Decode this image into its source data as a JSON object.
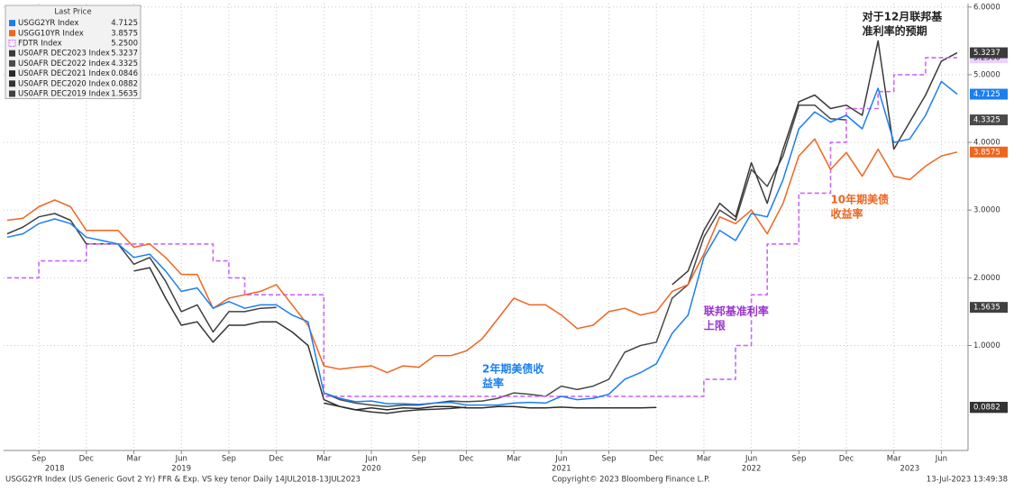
{
  "chart_data": {
    "type": "line",
    "legend_title": "Last Price",
    "footer_left": "USGG2YR Index (US Generic Govt 2 Yr) FFR & Exp. VS key tenor  Daily 14JUL2018-13JUL2023",
    "footer_center": "Copyright© 2023 Bloomberg Finance L.P.",
    "footer_right": "13-Jul-2023 13:49:38",
    "grid": true,
    "legend": "upper left",
    "xlim": [
      "2018-07",
      "2023-07"
    ],
    "ylim": [
      -0.55,
      6.05
    ],
    "yticks": [
      {
        "value": 1,
        "label": "1.0000"
      },
      {
        "value": 2,
        "label": "2.0000"
      },
      {
        "value": 3,
        "label": "3.0000"
      },
      {
        "value": 4,
        "label": "4.0000"
      },
      {
        "value": 5,
        "label": "5.0000"
      },
      {
        "value": 6,
        "label": "6.0000"
      }
    ],
    "xticks": [
      {
        "value": "2018-09",
        "label": "Sep"
      },
      {
        "value": "2018-12",
        "label": "Dec"
      },
      {
        "value": "2019-03",
        "label": "Mar"
      },
      {
        "value": "2019-06",
        "label": "Jun"
      },
      {
        "value": "2019-09",
        "label": "Sep"
      },
      {
        "value": "2019-12",
        "label": "Dec"
      },
      {
        "value": "2020-03",
        "label": "Mar"
      },
      {
        "value": "2020-06",
        "label": "Jun"
      },
      {
        "value": "2020-09",
        "label": "Sep"
      },
      {
        "value": "2020-12",
        "label": "Dec"
      },
      {
        "value": "2021-03",
        "label": "Mar"
      },
      {
        "value": "2021-06",
        "label": "Jun"
      },
      {
        "value": "2021-09",
        "label": "Sep"
      },
      {
        "value": "2021-12",
        "label": "Dec"
      },
      {
        "value": "2022-03",
        "label": "Mar"
      },
      {
        "value": "2022-06",
        "label": "Jun"
      },
      {
        "value": "2022-09",
        "label": "Sep"
      },
      {
        "value": "2022-12",
        "label": "Dec"
      },
      {
        "value": "2023-03",
        "label": "Mar"
      },
      {
        "value": "2023-06",
        "label": "Jun"
      }
    ],
    "year_labels": [
      {
        "value": "2018-10",
        "label": "2018"
      },
      {
        "value": "2019-06",
        "label": "2019"
      },
      {
        "value": "2020-06",
        "label": "2020"
      },
      {
        "value": "2021-06",
        "label": "2021"
      },
      {
        "value": "2022-06",
        "label": "2022"
      },
      {
        "value": "2023-04",
        "label": "2023"
      }
    ],
    "x": [
      "2018-07",
      "2018-08",
      "2018-09",
      "2018-10",
      "2018-11",
      "2018-12",
      "2019-01",
      "2019-02",
      "2019-03",
      "2019-04",
      "2019-05",
      "2019-06",
      "2019-07",
      "2019-08",
      "2019-09",
      "2019-10",
      "2019-11",
      "2019-12",
      "2020-01",
      "2020-02",
      "2020-03",
      "2020-04",
      "2020-05",
      "2020-06",
      "2020-07",
      "2020-08",
      "2020-09",
      "2020-10",
      "2020-11",
      "2020-12",
      "2021-01",
      "2021-02",
      "2021-03",
      "2021-04",
      "2021-05",
      "2021-06",
      "2021-07",
      "2021-08",
      "2021-09",
      "2021-10",
      "2021-11",
      "2021-12",
      "2022-01",
      "2022-02",
      "2022-03",
      "2022-04",
      "2022-05",
      "2022-06",
      "2022-07",
      "2022-08",
      "2022-09",
      "2022-10",
      "2022-11",
      "2022-12",
      "2023-01",
      "2023-02",
      "2023-03",
      "2023-04",
      "2023-05",
      "2023-06",
      "2023-07"
    ],
    "series": [
      {
        "name": "USGG2YR Index",
        "color": "#1a7ff0",
        "tag_text": "#ffffff",
        "last_label": "4.7125",
        "values": [
          2.6,
          2.65,
          2.8,
          2.87,
          2.8,
          2.6,
          2.55,
          2.5,
          2.3,
          2.35,
          2.1,
          1.8,
          1.85,
          1.55,
          1.65,
          1.55,
          1.6,
          1.6,
          1.45,
          1.35,
          0.3,
          0.22,
          0.17,
          0.18,
          0.14,
          0.14,
          0.13,
          0.15,
          0.16,
          0.12,
          0.12,
          0.12,
          0.15,
          0.16,
          0.15,
          0.25,
          0.2,
          0.22,
          0.28,
          0.5,
          0.6,
          0.73,
          1.18,
          1.45,
          2.3,
          2.7,
          2.55,
          2.95,
          2.9,
          3.45,
          4.2,
          4.45,
          4.3,
          4.4,
          4.2,
          4.8,
          4.0,
          4.05,
          4.4,
          4.9,
          4.7125
        ]
      },
      {
        "name": "USGG10YR Index",
        "color": "#f0641e",
        "tag_text": "#ffffff",
        "last_label": "3.8575",
        "values": [
          2.85,
          2.88,
          3.05,
          3.15,
          3.05,
          2.7,
          2.7,
          2.7,
          2.45,
          2.5,
          2.3,
          2.05,
          2.05,
          1.55,
          1.7,
          1.75,
          1.8,
          1.9,
          1.6,
          1.3,
          0.7,
          0.65,
          0.68,
          0.7,
          0.6,
          0.7,
          0.68,
          0.85,
          0.85,
          0.92,
          1.1,
          1.4,
          1.7,
          1.6,
          1.6,
          1.45,
          1.25,
          1.3,
          1.5,
          1.55,
          1.45,
          1.5,
          1.8,
          1.9,
          2.35,
          2.9,
          2.8,
          3.0,
          2.65,
          3.1,
          3.8,
          4.05,
          3.6,
          3.85,
          3.5,
          3.9,
          3.5,
          3.45,
          3.65,
          3.8,
          3.8575
        ]
      },
      {
        "name": "FDTR Index",
        "color": "#cc66ff",
        "tag_text": "#222222",
        "last_label": "5.2500",
        "step": true,
        "dashed": true,
        "values": [
          2.0,
          2.0,
          2.25,
          2.25,
          2.25,
          2.5,
          2.5,
          2.5,
          2.5,
          2.5,
          2.5,
          2.5,
          2.5,
          2.25,
          2.0,
          1.75,
          1.75,
          1.75,
          1.75,
          1.75,
          0.25,
          0.25,
          0.25,
          0.25,
          0.25,
          0.25,
          0.25,
          0.25,
          0.25,
          0.25,
          0.25,
          0.25,
          0.25,
          0.25,
          0.25,
          0.25,
          0.25,
          0.25,
          0.25,
          0.25,
          0.25,
          0.25,
          0.25,
          0.25,
          0.5,
          0.5,
          1.0,
          1.75,
          2.5,
          2.5,
          3.25,
          3.25,
          4.0,
          4.5,
          4.5,
          4.75,
          5.0,
          5.0,
          5.25,
          5.25,
          5.25
        ]
      },
      {
        "name": "US0AFR DEC2023 Index",
        "color": "#3a3a3a",
        "tag_text": "#ffffff",
        "last_label": "5.3237",
        "values": [
          null,
          null,
          null,
          null,
          null,
          null,
          null,
          null,
          null,
          null,
          null,
          null,
          null,
          null,
          null,
          null,
          null,
          null,
          null,
          null,
          null,
          null,
          null,
          null,
          null,
          null,
          null,
          null,
          null,
          null,
          null,
          null,
          null,
          null,
          null,
          null,
          null,
          null,
          null,
          null,
          null,
          null,
          1.9,
          2.1,
          2.7,
          3.1,
          2.9,
          3.7,
          3.1,
          3.9,
          4.6,
          4.7,
          4.5,
          4.55,
          4.4,
          5.5,
          3.9,
          4.3,
          4.7,
          5.2,
          5.3237
        ]
      },
      {
        "name": "US0AFR DEC2022 Index",
        "color": "#4a4a4a",
        "tag_text": "#ffffff",
        "last_label": "4.3325",
        "values": [
          null,
          null,
          null,
          null,
          null,
          null,
          null,
          null,
          null,
          null,
          null,
          null,
          null,
          null,
          null,
          null,
          null,
          null,
          null,
          null,
          0.3,
          0.2,
          0.15,
          0.12,
          0.1,
          0.12,
          0.12,
          0.15,
          0.18,
          0.17,
          0.18,
          0.22,
          0.3,
          0.28,
          0.25,
          0.4,
          0.35,
          0.4,
          0.5,
          0.9,
          1.0,
          1.05,
          1.7,
          1.9,
          2.6,
          3.0,
          2.85,
          3.6,
          3.35,
          3.8,
          4.55,
          4.55,
          4.35,
          4.3325,
          null,
          null,
          null,
          null,
          null,
          null,
          null
        ]
      },
      {
        "name": "US0AFR DEC2021 Index",
        "color": "#2a2a2a",
        "tag_text": "#ffffff",
        "last_label": "0.0846",
        "values": [
          null,
          null,
          null,
          null,
          null,
          null,
          null,
          null,
          null,
          null,
          null,
          null,
          null,
          null,
          null,
          null,
          null,
          null,
          null,
          null,
          0.15,
          0.1,
          0.05,
          0.08,
          0.05,
          0.08,
          0.07,
          0.1,
          0.1,
          0.08,
          0.08,
          0.1,
          0.1,
          0.08,
          0.08,
          0.09,
          0.08,
          0.08,
          0.08,
          0.08,
          0.08,
          0.0846,
          null,
          null,
          null,
          null,
          null,
          null,
          null,
          null,
          null,
          null,
          null,
          null,
          null,
          null,
          null,
          null,
          null,
          null,
          null
        ]
      },
      {
        "name": "US0AFR DEC2020 Index",
        "color": "#333333",
        "tag_text": "#ffffff",
        "last_label": "0.0882",
        "values": [
          null,
          null,
          null,
          null,
          null,
          null,
          null,
          null,
          2.1,
          2.15,
          1.7,
          1.3,
          1.35,
          1.05,
          1.3,
          1.3,
          1.35,
          1.35,
          1.2,
          1.0,
          0.2,
          0.1,
          0.05,
          0.02,
          0.0,
          0.03,
          0.05,
          0.06,
          0.07,
          0.0882,
          null,
          null,
          null,
          null,
          null,
          null,
          null,
          null,
          null,
          null,
          null,
          null,
          null,
          null,
          null,
          null,
          null,
          null,
          null,
          null,
          null,
          null,
          null,
          null,
          null,
          null,
          null,
          null,
          null,
          null,
          null
        ]
      },
      {
        "name": "US0AFR DEC2019 Index",
        "color": "#404040",
        "tag_text": "#ffffff",
        "last_label": "1.5635",
        "values": [
          2.65,
          2.75,
          2.9,
          2.95,
          2.85,
          2.5,
          2.5,
          2.5,
          2.2,
          2.3,
          1.95,
          1.5,
          1.6,
          1.2,
          1.5,
          1.5,
          1.55,
          1.5635,
          null,
          null,
          null,
          null,
          null,
          null,
          null,
          null,
          null,
          null,
          null,
          null,
          null,
          null,
          null,
          null,
          null,
          null,
          null,
          null,
          null,
          null,
          null,
          null,
          null,
          null,
          null,
          null,
          null,
          null,
          null,
          null,
          null,
          null,
          null,
          null,
          null,
          null,
          null,
          null,
          null,
          null,
          null
        ]
      }
    ],
    "annotations": [
      {
        "lines": [
          "对于12月联邦基",
          "准利率的预期"
        ],
        "color": "#222222",
        "at": "2023-01",
        "y": 5.85
      },
      {
        "lines": [
          "10年期美债",
          "收益率"
        ],
        "color": "#f0641e",
        "at": "2022-11",
        "y": 3.15
      },
      {
        "lines": [
          "联邦基准利率",
          "上限"
        ],
        "color": "#9933cc",
        "at": "2022-03",
        "y": 1.5
      },
      {
        "lines": [
          "2年期美债收",
          "益率"
        ],
        "color": "#1a7ff0",
        "at": "2021-01",
        "y": 0.65
      }
    ]
  }
}
